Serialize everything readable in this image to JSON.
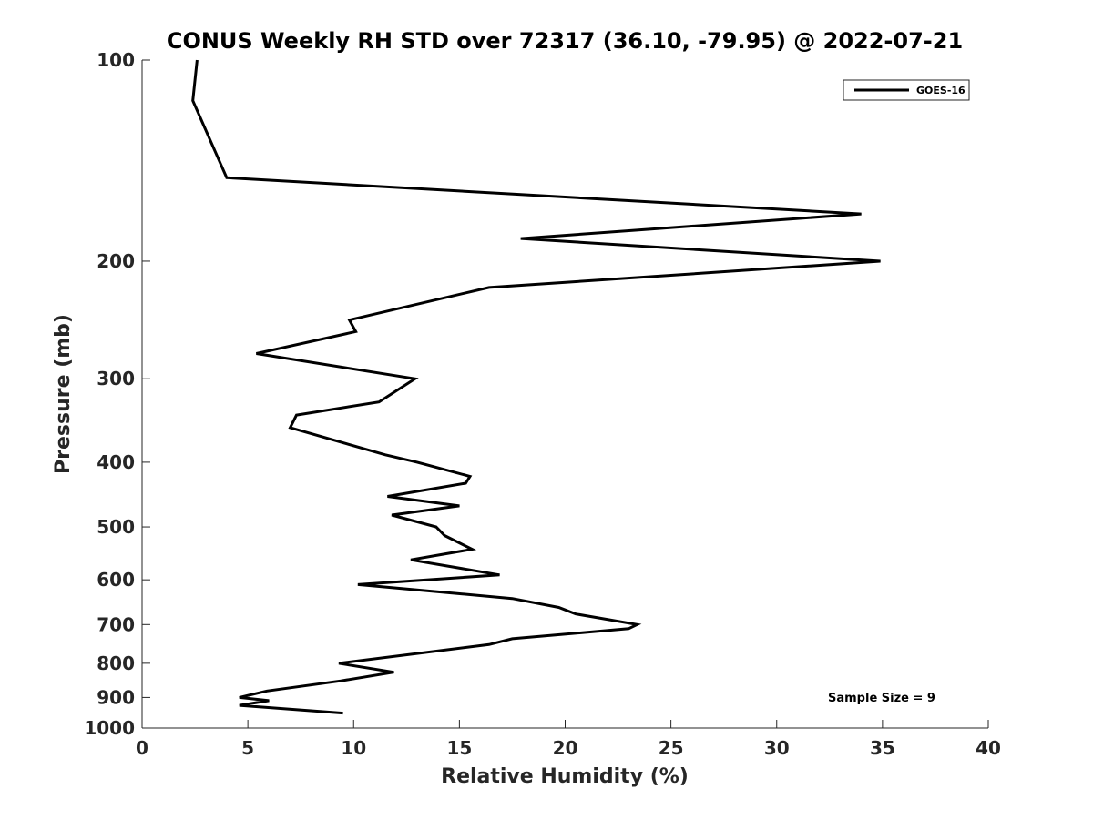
{
  "chart_data": {
    "type": "line",
    "title": "CONUS Weekly RH STD over 72317 (36.10, -79.95) @ 2022-07-21",
    "xlabel": "Relative Humidity (%)",
    "ylabel": "Pressure (mb)",
    "xlim": [
      0,
      40
    ],
    "ylim": [
      100,
      1000
    ],
    "y_scale": "log",
    "y_reversed": true,
    "x_ticks": [
      "0",
      "5",
      "10",
      "15",
      "20",
      "25",
      "30",
      "35",
      "40"
    ],
    "y_ticks": [
      "100",
      "200",
      "300",
      "400",
      "500",
      "600",
      "700",
      "800",
      "900",
      "1000"
    ],
    "grid": false,
    "legend_position": "top-right",
    "annotation": "Sample Size = 9",
    "series": [
      {
        "name": "GOES-16",
        "color": "#000000",
        "x": [
          2.6,
          2.4,
          4.0,
          34.0,
          17.9,
          34.9,
          16.4,
          9.8,
          10.1,
          5.4,
          12.9,
          11.2,
          7.3,
          7.0,
          11.5,
          13.0,
          15.5,
          15.3,
          11.6,
          15.0,
          11.8,
          13.9,
          14.3,
          15.6,
          12.7,
          16.9,
          10.2,
          17.5,
          19.7,
          20.5,
          23.4,
          23.0,
          17.5,
          16.4,
          9.3,
          11.9,
          9.4,
          5.9,
          4.6,
          6.0,
          4.6,
          9.5
        ],
        "y": [
          100,
          115,
          150,
          170,
          185,
          200,
          219,
          245,
          255,
          275,
          300,
          325,
          340,
          355,
          390,
          400,
          420,
          430,
          450,
          465,
          480,
          500,
          515,
          540,
          560,
          590,
          610,
          640,
          660,
          675,
          700,
          710,
          735,
          750,
          800,
          825,
          850,
          880,
          900,
          910,
          925,
          950
        ]
      }
    ]
  }
}
